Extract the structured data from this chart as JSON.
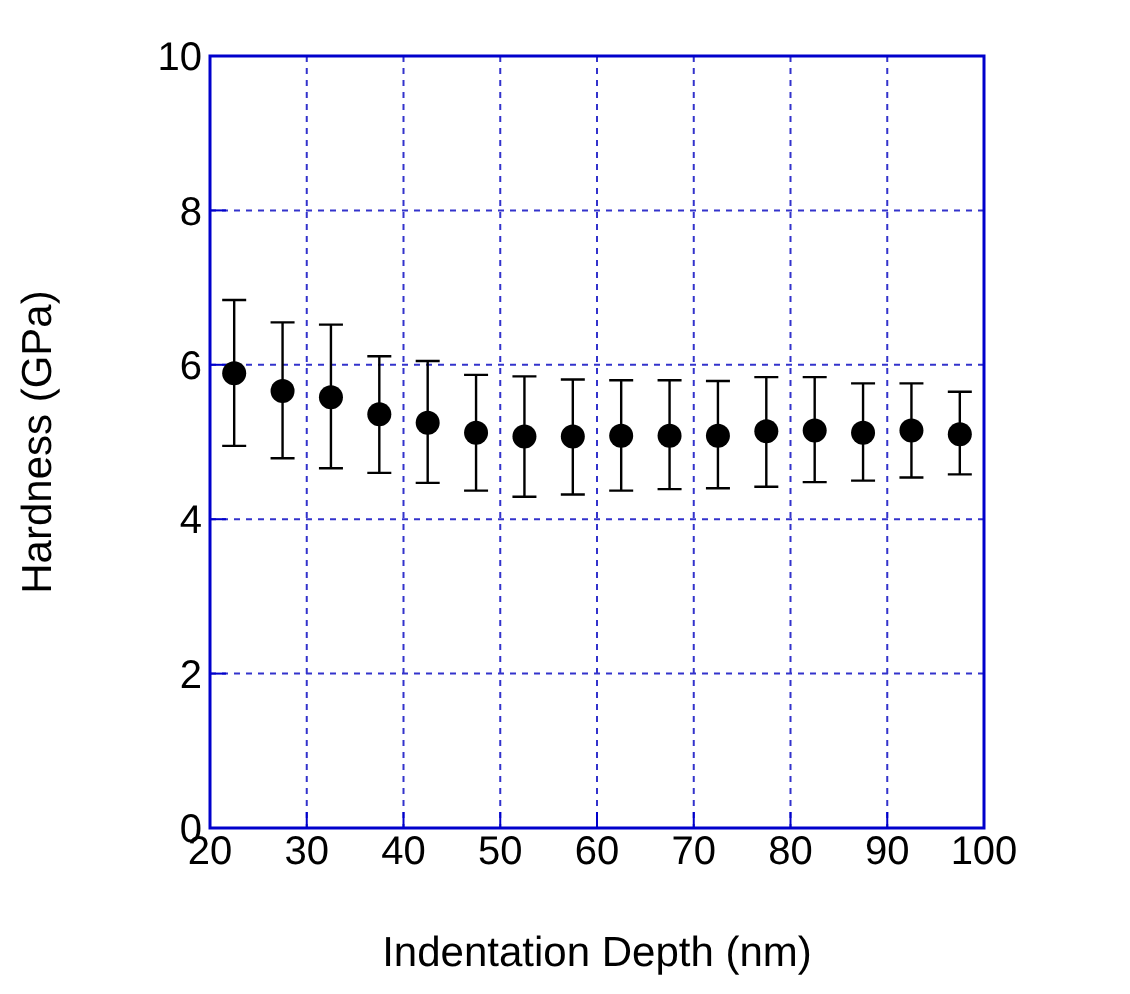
{
  "chart_data": {
    "type": "scatter",
    "xlabel": "Indentation Depth (nm)",
    "ylabel": "Hardness (GPa)",
    "x": [
      22.5,
      27.5,
      32.5,
      37.5,
      42.5,
      47.5,
      52.5,
      57.5,
      62.5,
      67.5,
      72.5,
      77.5,
      82.5,
      87.5,
      92.5,
      97.5
    ],
    "values": [
      5.89,
      5.66,
      5.58,
      5.36,
      5.25,
      5.12,
      5.07,
      5.07,
      5.08,
      5.08,
      5.08,
      5.14,
      5.15,
      5.12,
      5.15,
      5.1
    ],
    "errors": [
      [
        4.95,
        6.84
      ],
      [
        4.79,
        6.55
      ],
      [
        4.66,
        6.52
      ],
      [
        4.6,
        6.11
      ],
      [
        4.47,
        6.05
      ],
      [
        4.37,
        5.87
      ],
      [
        4.29,
        5.85
      ],
      [
        4.32,
        5.81
      ],
      [
        4.37,
        5.8
      ],
      [
        4.39,
        5.8
      ],
      [
        4.4,
        5.79
      ],
      [
        4.42,
        5.84
      ],
      [
        4.48,
        5.84
      ],
      [
        4.5,
        5.76
      ],
      [
        4.54,
        5.76
      ],
      [
        4.58,
        5.65
      ]
    ],
    "color": "#000000",
    "marker": "circle",
    "xlim": [
      20,
      100
    ],
    "xticks": [
      20,
      30,
      40,
      50,
      60,
      70,
      80,
      90,
      100
    ],
    "ylim": [
      0,
      10
    ],
    "yticks": [
      0,
      2,
      4,
      6,
      8,
      10
    ],
    "grid": true
  }
}
